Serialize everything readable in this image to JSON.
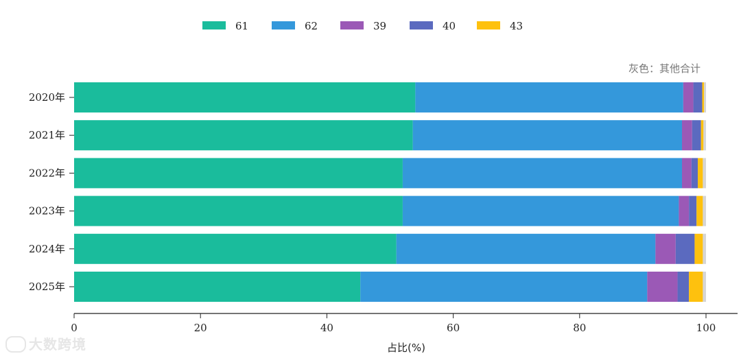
{
  "chart_data": {
    "type": "bar",
    "orientation": "horizontal",
    "stacked": true,
    "categories": [
      "2020年",
      "2021年",
      "2022年",
      "2023年",
      "2024年",
      "2025年"
    ],
    "series": [
      {
        "name": "61",
        "color": "#1abc9c",
        "values": [
          54.0,
          53.6,
          52.0,
          52.0,
          51.0,
          45.3
        ]
      },
      {
        "name": "62",
        "color": "#3498db",
        "values": [
          42.4,
          42.6,
          44.2,
          43.7,
          41.0,
          45.4
        ]
      },
      {
        "name": "39",
        "color": "#9b59b6",
        "values": [
          1.6,
          1.6,
          1.5,
          1.6,
          3.2,
          4.8
        ]
      },
      {
        "name": "40",
        "color": "#5b6abf",
        "values": [
          1.4,
          1.4,
          1.0,
          1.2,
          3.0,
          1.8
        ]
      },
      {
        "name": "43",
        "color": "#fec10e",
        "values": [
          0.3,
          0.4,
          0.8,
          1.0,
          1.3,
          2.2
        ]
      }
    ],
    "other": {
      "color": "#d5d5d5",
      "values": [
        0.3,
        0.4,
        0.5,
        0.5,
        0.5,
        0.5
      ]
    },
    "note": "灰色：其他合计",
    "xlabel": "占比(%)",
    "ylabel": "",
    "xlim": [
      0,
      100
    ],
    "xticks": [
      0,
      20,
      40,
      60,
      80,
      100
    ],
    "legend_position": "top-center",
    "grid": false
  },
  "watermark": {
    "text": "大数跨境"
  }
}
